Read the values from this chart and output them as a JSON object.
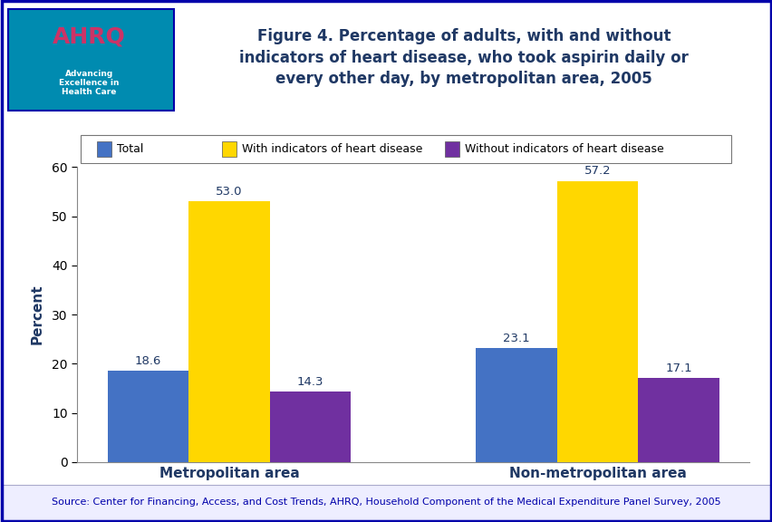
{
  "title": "Figure 4. Percentage of adults, with and without\nindicators of heart disease, who took aspirin daily or\nevery other day, by metropolitan area, 2005",
  "categories": [
    "Metropolitan area",
    "Non-metropolitan area"
  ],
  "series": {
    "Total": [
      18.6,
      23.1
    ],
    "With indicators of heart disease": [
      53.0,
      57.2
    ],
    "Without indicators of heart disease": [
      14.3,
      17.1
    ]
  },
  "colors": {
    "Total": "#4472C4",
    "With indicators of heart disease": "#FFD700",
    "Without indicators of heart disease": "#7030A0"
  },
  "ylabel": "Percent",
  "ylim": [
    0,
    60
  ],
  "yticks": [
    0,
    10,
    20,
    30,
    40,
    50,
    60
  ],
  "bar_width": 0.22,
  "source_text": "Source: Center for Financing, Access, and Cost Trends, AHRQ, Household Component of the Medical Expenditure Panel Survey, 2005",
  "title_color": "#1F3864",
  "tick_label_color": "#000000",
  "border_color": "#0000AA",
  "background_color": "#FFFFFF",
  "separator_color": "#0000CC",
  "source_text_color": "#0000AA",
  "bar_label_color": "#1F3864",
  "xticklabel_color": "#1F3864",
  "ylabel_color": "#1F3864",
  "outer_border_color": "#0000AA",
  "logo_bg": "#008BB0",
  "logo_text_main": "AHRQ",
  "logo_text_sub": "Advancing\nExcellence in\nHealth Care"
}
